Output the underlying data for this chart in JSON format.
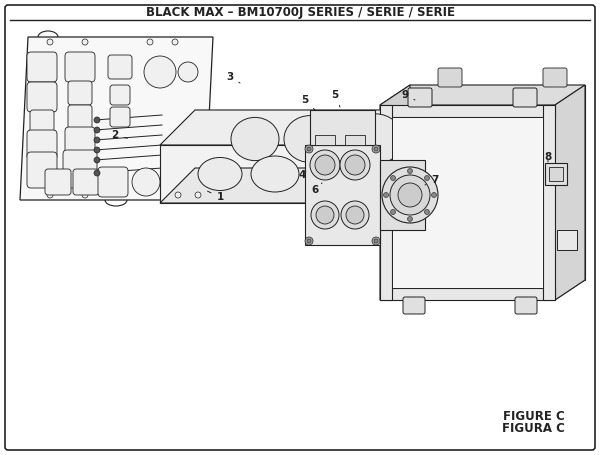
{
  "title": "BLACK MAX – BM10700J SERIES / SÉRIE / SERIE",
  "figure_label": "FIGURE C",
  "figura_label": "FIGURA C",
  "bg_color": "#ffffff",
  "line_color": "#222222",
  "title_fontsize": 8.5,
  "label_fontsize": 7.5,
  "fig_label_fontsize": 8.5
}
